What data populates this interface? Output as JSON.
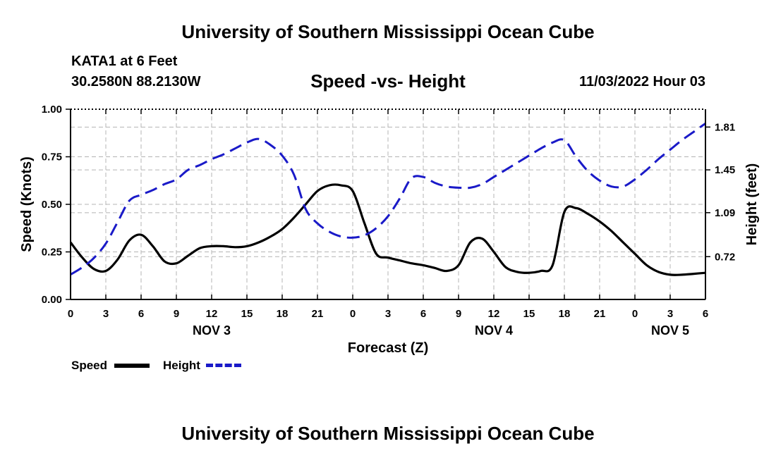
{
  "header": {
    "title": "University of Southern Mississippi Ocean Cube",
    "station": "KATA1 at 6 Feet",
    "coords": "30.2580N  88.2130W",
    "subtitle": "Speed -vs- Height",
    "datetime": "11/03/2022 Hour 03"
  },
  "footer": {
    "title": "University of Southern Mississippi Ocean Cube"
  },
  "legend": {
    "speed": "Speed",
    "height": "Height"
  },
  "colors": {
    "speed": "#000000",
    "height": "#1a1ac8",
    "grid": "#b4b4b4"
  },
  "chart_data": {
    "type": "line",
    "xlabel": "Forecast (Z)",
    "ylabel_left": "Speed (Knots)",
    "ylabel_right": "Height (feet)",
    "x_range": [
      0,
      54
    ],
    "x_ticks": [
      0,
      3,
      6,
      9,
      12,
      15,
      18,
      21,
      24,
      27,
      30,
      33,
      36,
      39,
      42,
      45,
      48,
      51,
      54
    ],
    "x_tick_labels": [
      "0",
      "3",
      "6",
      "9",
      "12",
      "15",
      "18",
      "21",
      "0",
      "3",
      "6",
      "9",
      "12",
      "15",
      "18",
      "21",
      "0",
      "3",
      "6"
    ],
    "day_labels": [
      {
        "x": 12,
        "label": "NOV 3"
      },
      {
        "x": 36,
        "label": "NOV 4"
      },
      {
        "x": 51,
        "label": "NOV 5"
      }
    ],
    "left_axis": {
      "range": [
        0,
        1
      ],
      "ticks": [
        0,
        0.25,
        0.5,
        0.75,
        1.0
      ],
      "tick_labels": [
        "0.00",
        "0.25",
        "0.50",
        "0.75",
        "1.00"
      ]
    },
    "right_axis": {
      "range": [
        0.36,
        1.96
      ],
      "ticks": [
        0.72,
        1.09,
        1.45,
        1.81
      ],
      "tick_labels": [
        "0.72",
        "1.09",
        "1.45",
        "1.81"
      ]
    },
    "grid": true,
    "series": [
      {
        "name": "Speed",
        "axis": "left",
        "style": "solid",
        "x": [
          0,
          1,
          2,
          3,
          4,
          5,
          6,
          7,
          8,
          9,
          10,
          11,
          12,
          13,
          14,
          15,
          16,
          17,
          18,
          19,
          20,
          21,
          22,
          23,
          24,
          25,
          26,
          27,
          28,
          29,
          30,
          31,
          32,
          33,
          34,
          35,
          36,
          37,
          38,
          39,
          40,
          41,
          42,
          43,
          44,
          45,
          46,
          47,
          48,
          49,
          50,
          51,
          52,
          53,
          54
        ],
        "values": [
          0.3,
          0.22,
          0.16,
          0.15,
          0.21,
          0.31,
          0.34,
          0.28,
          0.2,
          0.19,
          0.23,
          0.27,
          0.28,
          0.28,
          0.275,
          0.28,
          0.3,
          0.33,
          0.37,
          0.43,
          0.5,
          0.57,
          0.6,
          0.6,
          0.57,
          0.4,
          0.24,
          0.22,
          0.205,
          0.19,
          0.18,
          0.165,
          0.15,
          0.18,
          0.3,
          0.32,
          0.25,
          0.17,
          0.145,
          0.14,
          0.15,
          0.18,
          0.46,
          0.48,
          0.45,
          0.41,
          0.36,
          0.3,
          0.24,
          0.18,
          0.145,
          0.13,
          0.13,
          0.135,
          0.14
        ]
      },
      {
        "name": "Height",
        "axis": "right",
        "style": "dashed",
        "x": [
          0,
          1,
          2,
          3,
          4,
          5,
          6,
          7,
          8,
          9,
          10,
          11,
          12,
          13,
          14,
          15,
          16,
          17,
          18,
          19,
          20,
          21,
          22,
          23,
          24,
          25,
          26,
          27,
          28,
          29,
          30,
          31,
          32,
          33,
          34,
          35,
          36,
          37,
          38,
          39,
          40,
          41,
          42,
          43,
          44,
          45,
          46,
          47,
          48,
          49,
          50,
          51,
          52,
          53,
          54
        ],
        "values": [
          0.57,
          0.63,
          0.71,
          0.83,
          1.01,
          1.19,
          1.24,
          1.28,
          1.33,
          1.37,
          1.45,
          1.49,
          1.54,
          1.58,
          1.63,
          1.68,
          1.71,
          1.66,
          1.57,
          1.41,
          1.12,
          1.0,
          0.93,
          0.89,
          0.88,
          0.9,
          0.96,
          1.06,
          1.21,
          1.38,
          1.39,
          1.34,
          1.31,
          1.3,
          1.3,
          1.33,
          1.39,
          1.45,
          1.51,
          1.57,
          1.63,
          1.68,
          1.7,
          1.56,
          1.44,
          1.36,
          1.31,
          1.31,
          1.37,
          1.45,
          1.54,
          1.62,
          1.7,
          1.77,
          1.84
        ]
      }
    ]
  }
}
